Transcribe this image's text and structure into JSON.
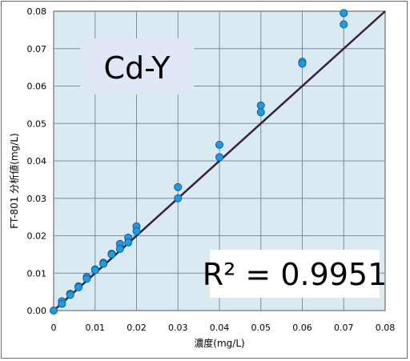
{
  "chart_data": {
    "type": "scatter",
    "xlabel": "濃度(mg/L)",
    "ylabel": "FT-801 分析値(mg/L)",
    "xlim": [
      0,
      0.08
    ],
    "ylim": [
      0,
      0.08
    ],
    "x_ticks": [
      "0",
      "0.01",
      "0.02",
      "0.03",
      "0.04",
      "0.05",
      "0.06",
      "0.07",
      "0.08"
    ],
    "y_ticks": [
      "0.00",
      "0.01",
      "0.02",
      "0.03",
      "0.04",
      "0.05",
      "0.06",
      "0.07",
      "0.08"
    ],
    "grid": true,
    "annotations": {
      "label_box": "Cd-Y",
      "r_squared": "R² = 0.9951"
    },
    "series": [
      {
        "points": [
          [
            0,
            0
          ],
          [
            0.002,
            0.0025
          ],
          [
            0.002,
            0.0018
          ],
          [
            0.004,
            0.0045
          ],
          [
            0.004,
            0.0042
          ],
          [
            0.006,
            0.0065
          ],
          [
            0.006,
            0.0062
          ],
          [
            0.008,
            0.009
          ],
          [
            0.008,
            0.0085
          ],
          [
            0.01,
            0.011
          ],
          [
            0.01,
            0.0108
          ],
          [
            0.012,
            0.0128
          ],
          [
            0.012,
            0.0125
          ],
          [
            0.014,
            0.0152
          ],
          [
            0.014,
            0.015
          ],
          [
            0.016,
            0.0178
          ],
          [
            0.016,
            0.0165
          ],
          [
            0.018,
            0.0195
          ],
          [
            0.018,
            0.0182
          ],
          [
            0.02,
            0.0225
          ],
          [
            0.02,
            0.0212
          ],
          [
            0.03,
            0.033
          ],
          [
            0.03,
            0.03
          ],
          [
            0.04,
            0.0443
          ],
          [
            0.04,
            0.041
          ],
          [
            0.05,
            0.0548
          ],
          [
            0.05,
            0.053
          ],
          [
            0.06,
            0.0665
          ],
          [
            0.06,
            0.066
          ],
          [
            0.07,
            0.0795
          ],
          [
            0.07,
            0.0765
          ]
        ]
      }
    ],
    "trendline": {
      "x": [
        0,
        0.08
      ],
      "y": [
        0,
        0.08
      ]
    },
    "colors": {
      "plot_background": "#d9eaf3",
      "grid": "#7f8c98",
      "trendline": "#3a1f3d",
      "marker_fill": "#1e9be6",
      "marker_stroke": "#0d5f96",
      "label_box": "#dfe9f5"
    }
  }
}
